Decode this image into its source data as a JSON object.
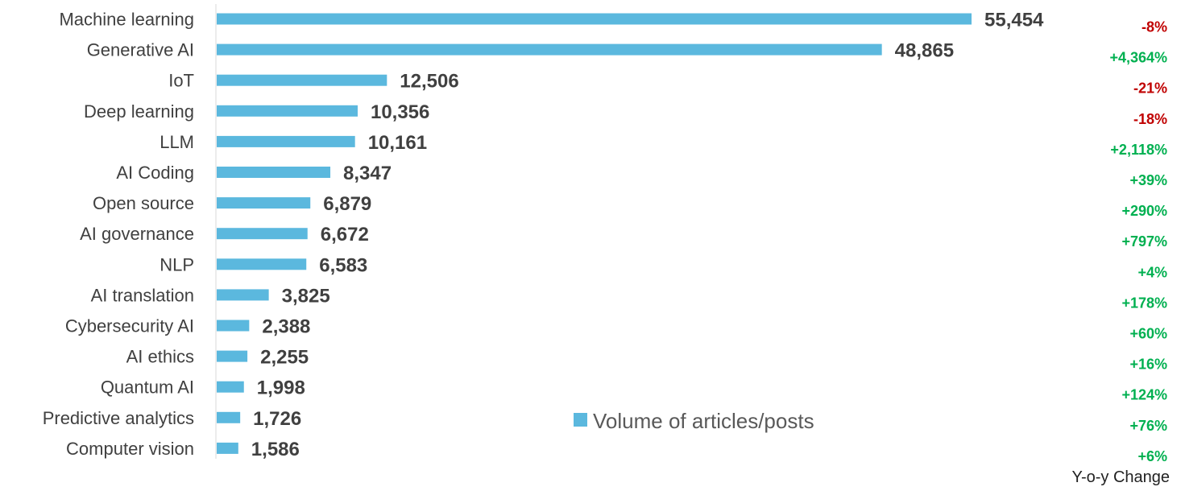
{
  "chart_data": {
    "type": "bar",
    "orientation": "horizontal",
    "categories": [
      "Machine learning",
      "Generative AI",
      "IoT",
      "Deep learning",
      "LLM",
      "AI Coding",
      "Open source",
      "AI governance",
      "NLP",
      "AI translation",
      "Cybersecurity AI",
      "AI ethics",
      "Quantum AI",
      "Predictive analytics",
      "Computer vision"
    ],
    "series": [
      {
        "name": "Volume of articles/posts",
        "values": [
          55454,
          48865,
          12506,
          10356,
          10161,
          8347,
          6879,
          6672,
          6583,
          3825,
          2388,
          2255,
          1998,
          1726,
          1586
        ],
        "labels": [
          "55,454",
          "48,865",
          "12,506",
          "10,356",
          "10,161",
          "8,347",
          "6,879",
          "6,672",
          "6,583",
          "3,825",
          "2,388",
          "2,255",
          "1,998",
          "1,726",
          "1,586"
        ],
        "color": "#5bb8de"
      }
    ],
    "yoy_change": [
      "-8%",
      "+4,364%",
      "-21%",
      "-18%",
      "+2,118%",
      "+39%",
      "+290%",
      "+797%",
      "+4%",
      "+178%",
      "+60%",
      "+16%",
      "+124%",
      "+76%",
      "+6%"
    ],
    "yoy_colors": {
      "negative": "#c00000",
      "positive": "#00b050"
    },
    "yoy_title": "Y-o-y Change",
    "legend": {
      "label": "Volume of articles/posts",
      "placement": "bottom-center"
    },
    "xlim": [
      0,
      55454
    ],
    "grid": false,
    "axis_color": "#d9d9d9",
    "label_color": "#404040"
  }
}
